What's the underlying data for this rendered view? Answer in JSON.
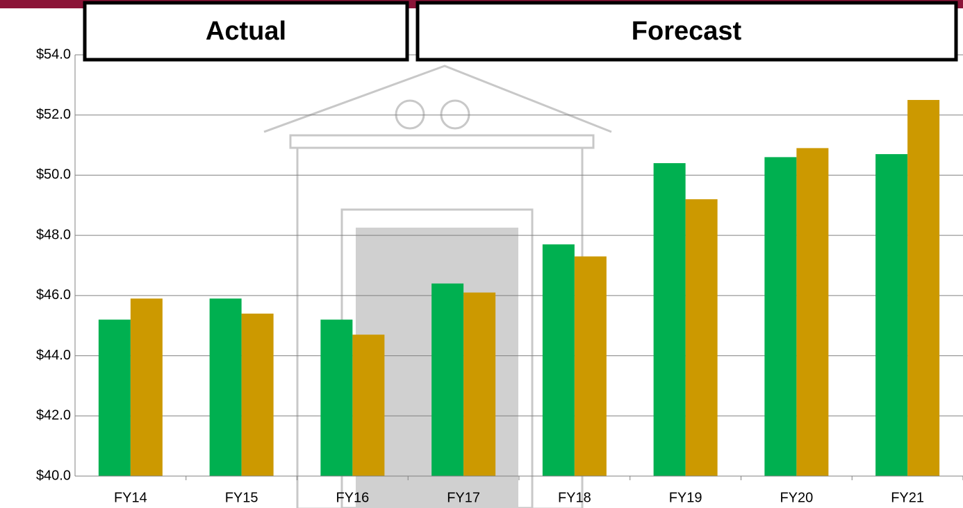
{
  "chart_data": {
    "type": "bar",
    "annotations": [
      "Actual",
      "Forecast"
    ],
    "categories": [
      "FY14",
      "FY15",
      "FY16",
      "FY17",
      "FY18",
      "FY19",
      "FY20",
      "FY21"
    ],
    "series": [
      {
        "color": "#00b050",
        "values": [
          45.2,
          45.9,
          45.2,
          46.4,
          47.7,
          50.4,
          50.6,
          50.7
        ]
      },
      {
        "color": "#cc9900",
        "values": [
          45.9,
          45.4,
          44.7,
          46.1,
          47.3,
          49.2,
          50.9,
          52.5
        ]
      }
    ],
    "ylim": [
      40,
      54
    ],
    "yticks": [
      {
        "value": 40,
        "label": "$40.0"
      },
      {
        "value": 42,
        "label": "$42.0"
      },
      {
        "value": 44,
        "label": "$44.0"
      },
      {
        "value": 46,
        "label": "$46.0"
      },
      {
        "value": 48,
        "label": "$48.0"
      },
      {
        "value": 50,
        "label": "$50.0"
      },
      {
        "value": 52,
        "label": "$52.0"
      },
      {
        "value": 54,
        "label": "$54.0"
      }
    ],
    "grid": true
  }
}
